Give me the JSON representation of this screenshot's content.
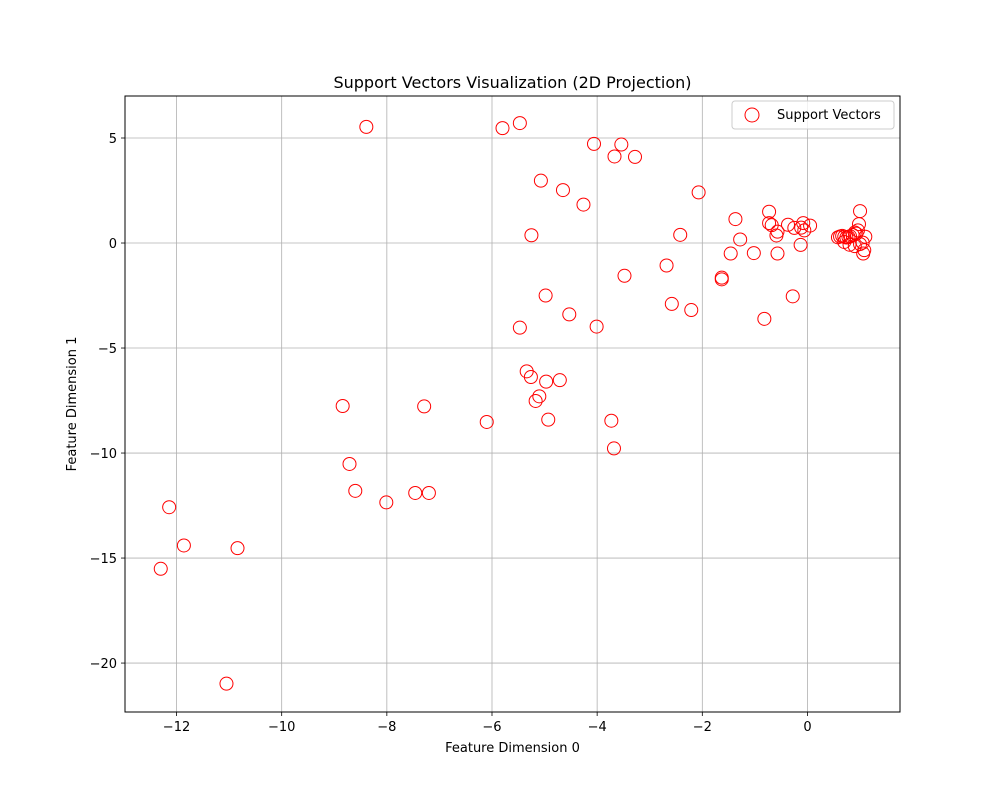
{
  "chart_data": {
    "type": "scatter",
    "title": "Support Vectors Visualization (2D Projection)",
    "xlabel": "Feature Dimension 0",
    "ylabel": "Feature Dimension 1",
    "xlim": [
      -12.98,
      1.76
    ],
    "ylim": [
      -22.33,
      7.0
    ],
    "xticks": [
      -12,
      -10,
      -8,
      -6,
      -4,
      -2,
      0
    ],
    "yticks": [
      -20,
      -15,
      -10,
      -5,
      0,
      5
    ],
    "xtick_labels": [
      "−12",
      "−10",
      "−8",
      "−6",
      "−4",
      "−2",
      "0"
    ],
    "ytick_labels": [
      "−20",
      "−15",
      "−10",
      "−5",
      "0",
      "5"
    ],
    "grid": true,
    "legend_position": "top-right",
    "marker_color": "#ff0000",
    "series": [
      {
        "name": "Support Vectors",
        "x": [
          -8.39,
          -5.8,
          -5.47,
          -4.06,
          -3.67,
          -3.54,
          -3.28,
          -5.07,
          -4.65,
          -4.26,
          -2.07,
          -5.25,
          -2.42,
          -2.68,
          -1.63,
          -1.63,
          -3.48,
          -4.98,
          -2.58,
          -2.21,
          -4.53,
          -5.47,
          -4.01,
          -0.82,
          -0.28,
          -1.37,
          -0.73,
          -0.73,
          -0.68,
          -0.57,
          -0.59,
          -0.57,
          -0.37,
          -0.25,
          -0.12,
          -0.08,
          -0.06,
          0.05,
          -0.13,
          -1.28,
          -1.46,
          -1.02,
          1.0,
          0.98,
          0.96,
          0.93,
          0.9,
          0.86,
          0.81,
          0.78,
          0.74,
          0.7,
          0.66,
          0.62,
          0.58,
          0.7,
          0.8,
          0.9,
          1.0,
          1.05,
          1.1,
          1.06,
          1.08,
          -5.34,
          -5.26,
          -4.97,
          -4.71,
          -5.1,
          -5.17,
          -4.93,
          -3.73,
          -3.68,
          -6.1,
          -8.84,
          -7.29,
          -8.71,
          -8.6,
          -8.01,
          -7.46,
          -7.2,
          -12.14,
          -11.86,
          -12.3,
          -10.84,
          -11.05
        ],
        "y": [
          5.53,
          5.47,
          5.71,
          4.72,
          4.12,
          4.69,
          4.1,
          2.97,
          2.52,
          1.83,
          2.41,
          0.37,
          0.39,
          -1.07,
          -1.65,
          -1.73,
          -1.56,
          -2.5,
          -2.9,
          -3.19,
          -3.4,
          -4.03,
          -3.98,
          -3.61,
          -2.54,
          1.14,
          1.49,
          0.95,
          0.85,
          0.54,
          0.36,
          -0.5,
          0.87,
          0.72,
          0.73,
          0.95,
          0.6,
          0.83,
          -0.09,
          0.17,
          -0.5,
          -0.48,
          1.52,
          0.9,
          0.6,
          0.45,
          0.5,
          0.38,
          0.32,
          0.28,
          0.26,
          0.3,
          0.34,
          0.31,
          0.27,
          0.05,
          -0.08,
          -0.15,
          -0.05,
          0.02,
          0.3,
          -0.5,
          -0.34,
          -6.11,
          -6.38,
          -6.6,
          -6.53,
          -7.3,
          -7.52,
          -8.41,
          -8.46,
          -9.78,
          -8.52,
          -7.76,
          -7.78,
          -10.52,
          -11.8,
          -12.35,
          -11.9,
          -11.9,
          -12.58,
          -14.4,
          -15.51,
          -14.53,
          -20.98
        ]
      }
    ]
  }
}
